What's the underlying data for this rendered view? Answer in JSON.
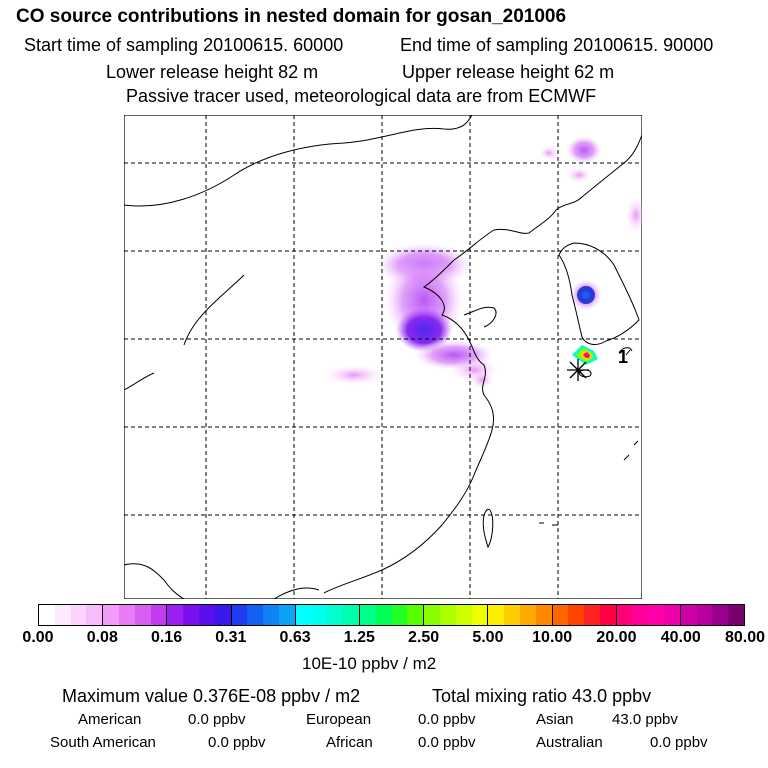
{
  "header": {
    "title": "CO  source contributions in nested domain for gosan_201006",
    "start_time": "Start time of sampling 20100615. 60000",
    "end_time": "End time of sampling 20100615. 90000",
    "lower_height": "Lower release height   82 m",
    "upper_height": "Upper release height   62 m",
    "tracer_note": "Passive tracer used, meteorological data are from ECMWF"
  },
  "map": {
    "receptor_label": "1",
    "grid": "dashed lat/lon lines"
  },
  "colorbar": {
    "tick_labels": [
      "0.00",
      "0.08",
      "0.16",
      "0.31",
      "0.63",
      "1.25",
      "2.50",
      "5.00",
      "10.00",
      "20.00",
      "40.00",
      "80.00"
    ],
    "colors": [
      "#ffffff",
      "#fde9fe",
      "#fbd3fd",
      "#f8bbfb",
      "#f29bf8",
      "#e77cf6",
      "#d85ff4",
      "#c23cf2",
      "#9a1ff0",
      "#7a10ee",
      "#5a10ee",
      "#3a18ee",
      "#1f3cf0",
      "#1560f2",
      "#0f82f4",
      "#0aa4f6",
      "#00ffff",
      "#00ffee",
      "#00ffcc",
      "#00ffaa",
      "#00ff88",
      "#00ff55",
      "#22ff22",
      "#55ff00",
      "#88ff00",
      "#aaff00",
      "#ccff00",
      "#eeff00",
      "#ffee00",
      "#ffcc00",
      "#ffaa00",
      "#ff8800",
      "#ff6600",
      "#ff4400",
      "#ff2222",
      "#ff0044",
      "#ff0077",
      "#ff0099",
      "#ff00aa",
      "#ee00aa",
      "#d000a8",
      "#b800a0",
      "#9a0090",
      "#7a0070"
    ],
    "units": "10E-10 ppbv / m2"
  },
  "summary": {
    "max_value": "Maximum value  0.376E-08 ppbv / m2",
    "total_mixing": "Total mixing ratio       43.0 ppbv",
    "american_label": "American",
    "american_val": "0.0 ppbv",
    "european_label": "European",
    "european_val": "0.0 ppbv",
    "asian_label": "Asian",
    "asian_val": "43.0 ppbv",
    "south_american_label": "South American",
    "south_american_val": "0.0 ppbv",
    "african_label": "African",
    "african_val": "0.0 ppbv",
    "australian_label": "Australian",
    "australian_val": "0.0 ppbv"
  }
}
